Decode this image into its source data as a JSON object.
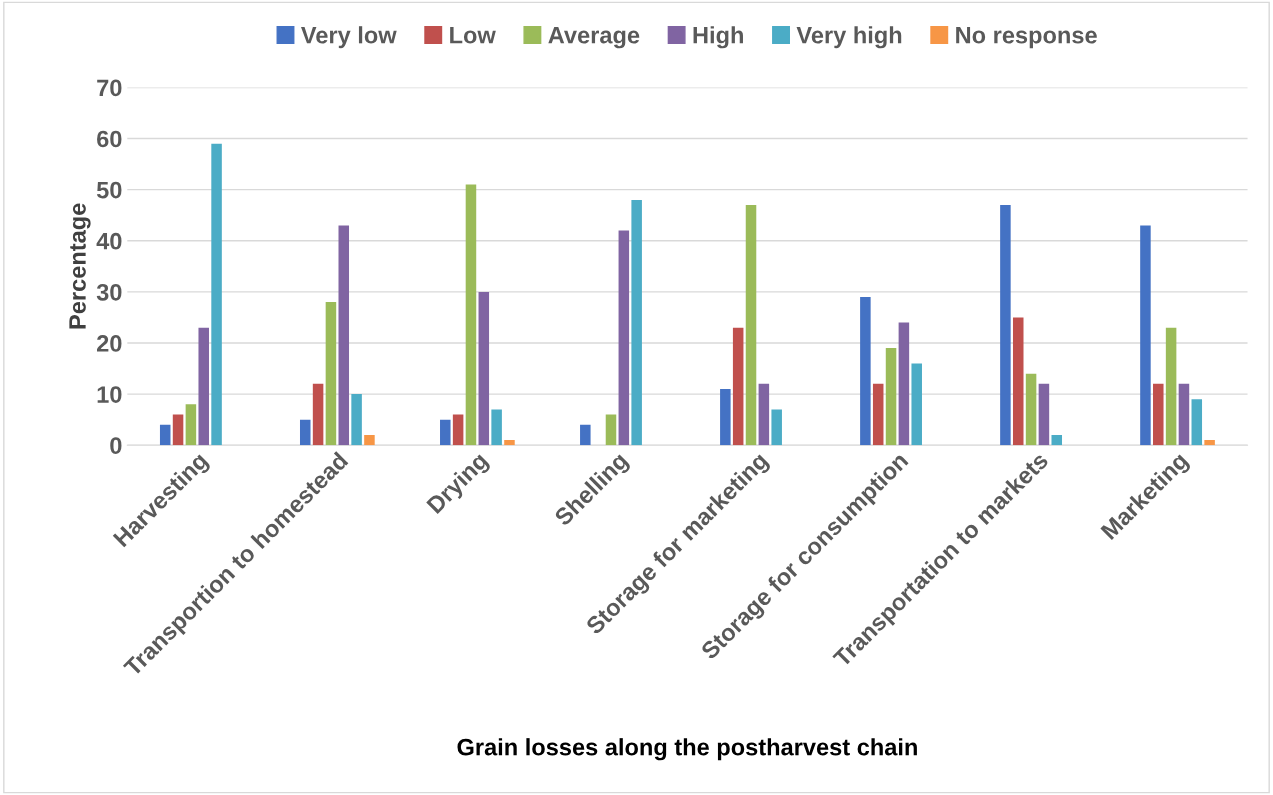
{
  "chart_data": {
    "type": "bar",
    "xlabel": "Grain losses along the postharvest chain",
    "ylabel": "Percentage",
    "categories": [
      "Harvesting",
      "Transportion to homestead",
      "Drying",
      "Shelling",
      "Storage for marketing",
      "Storage for consumption",
      "Transportation to markets",
      "Marketing"
    ],
    "series": [
      {
        "name": "Very low",
        "color": "#4472c4",
        "values": [
          4,
          5,
          5,
          4,
          11,
          29,
          47,
          43
        ]
      },
      {
        "name": "Low",
        "color": "#c0504d",
        "values": [
          6,
          12,
          6,
          0,
          23,
          12,
          25,
          12
        ]
      },
      {
        "name": "Average",
        "color": "#9bbb59",
        "values": [
          8,
          28,
          51,
          6,
          47,
          19,
          14,
          23
        ]
      },
      {
        "name": "High",
        "color": "#8064a2",
        "values": [
          23,
          43,
          30,
          42,
          12,
          24,
          12,
          12
        ]
      },
      {
        "name": "Very high",
        "color": "#4bacc6",
        "values": [
          59,
          10,
          7,
          48,
          7,
          16,
          2,
          9
        ]
      },
      {
        "name": "No response",
        "color": "#f79646",
        "values": [
          0,
          2,
          1,
          0,
          0,
          0,
          0,
          1
        ]
      }
    ],
    "ylim": [
      0,
      70
    ],
    "yticks": [
      0,
      10,
      20,
      30,
      40,
      50,
      60,
      70
    ],
    "grid": "y",
    "legend": "top"
  }
}
